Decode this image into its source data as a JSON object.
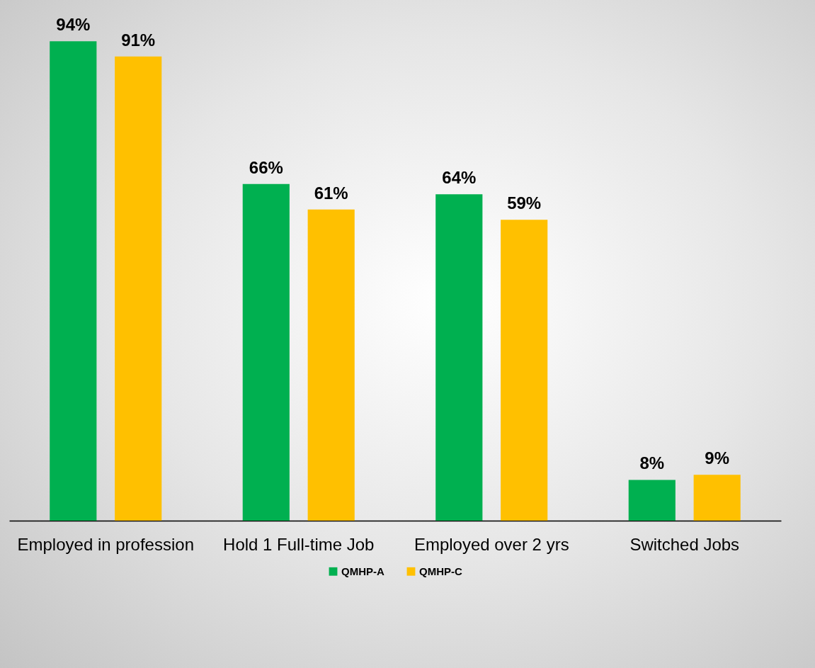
{
  "chart_data": {
    "type": "bar",
    "categories": [
      "Employed in profession",
      "Hold 1 Full-time Job",
      "Employed over 2 yrs",
      "Switched Jobs"
    ],
    "series": [
      {
        "name": "QMHP-A",
        "color": "#00b050",
        "values": [
          94,
          66,
          64,
          8
        ],
        "value_labels": [
          "94%",
          "66%",
          "64%",
          "8%"
        ]
      },
      {
        "name": "QMHP-C",
        "color": "#ffc000",
        "values": [
          91,
          61,
          59,
          9
        ],
        "value_labels": [
          "91%",
          "61%",
          "59%",
          "9%"
        ]
      }
    ],
    "legend": "bottom"
  }
}
